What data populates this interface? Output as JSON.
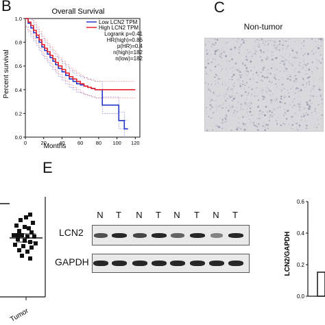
{
  "panels": {
    "b_letter": "B",
    "c_letter": "C",
    "e_letter": "E"
  },
  "survival": {
    "title": "Overall Survival",
    "ylabel": "Percent survival",
    "xlabel": "Months",
    "legend": {
      "low_label": "Low LCN2 TPM",
      "high_label": "High LCN2 TPM",
      "stats": [
        "Logrank p=0.41",
        "HR(high)=0.86",
        "p(HR)=0.4",
        "n(high)=182",
        "n(low)=182"
      ]
    },
    "colors": {
      "low": "#2233cc",
      "high": "#e8202a"
    }
  },
  "chart_data": [
    {
      "type": "line",
      "title": "Overall Survival",
      "xlabel": "Months",
      "ylabel": "Percent survival",
      "xlim": [
        0,
        125
      ],
      "ylim": [
        0,
        1.0
      ],
      "xticks": [
        "0",
        "20",
        "40",
        "60",
        "80",
        "100",
        "120"
      ],
      "yticks": [
        "0.0",
        "0.2",
        "0.4",
        "0.6",
        "0.8",
        "1.0"
      ],
      "series": [
        {
          "name": "Low LCN2 TPM",
          "x": [
            0,
            3,
            6,
            9,
            12,
            15,
            18,
            21,
            24,
            27,
            30,
            33,
            36,
            40,
            44,
            48,
            52,
            56,
            60,
            64,
            68,
            72,
            76,
            80,
            84,
            88,
            96,
            102,
            108,
            112
          ],
          "y": [
            1.0,
            0.96,
            0.92,
            0.88,
            0.84,
            0.8,
            0.76,
            0.73,
            0.7,
            0.67,
            0.64,
            0.61,
            0.58,
            0.55,
            0.52,
            0.49,
            0.47,
            0.45,
            0.44,
            0.43,
            0.42,
            0.41,
            0.4,
            0.4,
            0.27,
            0.27,
            0.27,
            0.14,
            0.07,
            0.07
          ]
        },
        {
          "name": "High LCN2 TPM",
          "x": [
            0,
            3,
            6,
            9,
            12,
            15,
            18,
            21,
            24,
            27,
            30,
            33,
            36,
            40,
            44,
            48,
            52,
            56,
            60,
            64,
            68,
            72,
            76,
            80,
            84,
            90,
            100,
            110,
            120
          ],
          "y": [
            1.0,
            0.97,
            0.94,
            0.9,
            0.86,
            0.82,
            0.78,
            0.75,
            0.72,
            0.69,
            0.66,
            0.63,
            0.6,
            0.57,
            0.54,
            0.51,
            0.49,
            0.47,
            0.45,
            0.43,
            0.42,
            0.41,
            0.4,
            0.4,
            0.4,
            0.4,
            0.4,
            0.4,
            0.4
          ]
        }
      ]
    },
    {
      "type": "scatter",
      "xlabel": "Tumor",
      "ylabel": ""
    },
    {
      "type": "bar",
      "categories": [],
      "ylabel": "LCN2/GAPDH",
      "ylim": [
        0,
        0.6
      ],
      "yticks": [
        "0.0",
        "0.2",
        "0.4",
        "0.6"
      ]
    }
  ],
  "ihc": {
    "title": "Non-tumor"
  },
  "blot": {
    "lanes": [
      "N",
      "T",
      "N",
      "T",
      "N",
      "T",
      "N",
      "T"
    ],
    "row1_label": "LCN2",
    "row2_label": "GAPDH",
    "lcn2_intensity": [
      0.75,
      0.95,
      0.8,
      0.95,
      0.65,
      0.95,
      0.5,
      0.95
    ],
    "gapdh_intensity": [
      0.95,
      0.95,
      0.95,
      0.95,
      0.95,
      0.95,
      0.95,
      0.95
    ]
  }
}
